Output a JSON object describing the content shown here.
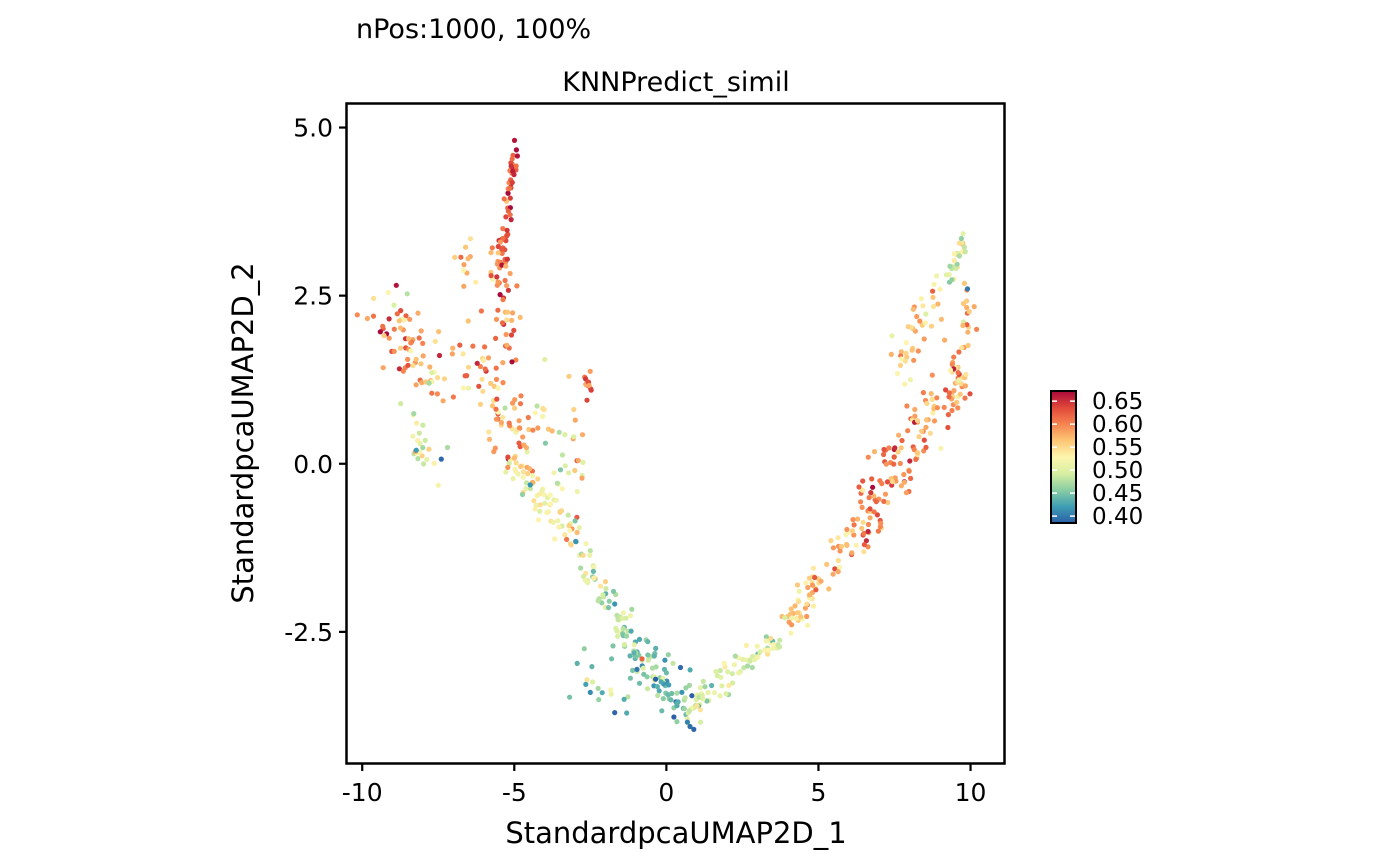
{
  "chart_data": {
    "type": "scatter",
    "title": "nPos:1000, 100%",
    "subtitle": "KNNPredict_simil",
    "xlabel": "StandardpcaUMAP2D_1",
    "ylabel": "StandardpcaUMAP2D_2",
    "xlim": [
      -10.5,
      11.1
    ],
    "ylim": [
      -4.45,
      5.35
    ],
    "x_ticks": [
      -10,
      -5,
      0,
      5,
      10
    ],
    "x_tick_labels": [
      "-10",
      "-5",
      "0",
      "5",
      "10"
    ],
    "y_ticks": [
      5.0,
      2.5,
      0.0,
      -2.5
    ],
    "y_tick_labels": [
      "5.0",
      "2.5",
      "0.0",
      "-2.5"
    ],
    "grid": false,
    "n_points": 1000,
    "color_scale": {
      "name": "Spectral",
      "colors": [
        "#2C5FA8",
        "#3E9EB3",
        "#8ACDA3",
        "#D7EFA2",
        "#FDF5AE",
        "#FDC676",
        "#F7834F",
        "#E0483A",
        "#A8093A"
      ],
      "domain": [
        0.385,
        0.672
      ],
      "legend_ticks": [
        0.65,
        0.6,
        0.55,
        0.5,
        0.45,
        0.4
      ],
      "legend_labels": [
        "0.65",
        "0.60",
        "0.55",
        "0.50",
        "0.45",
        "0.40"
      ],
      "legend_position": "right"
    },
    "clusters": [
      {
        "segment": [
          [
            -9.3,
            2.3
          ],
          [
            -7.6,
            1.2
          ]
        ],
        "spread": [
          0.6,
          0.45
        ],
        "count": 70,
        "value": 0.59,
        "value_sd": 0.045
      },
      {
        "segment": [
          [
            -8.4,
            0.6
          ],
          [
            -7.8,
            0.0
          ]
        ],
        "spread": [
          0.4,
          0.25
        ],
        "count": 22,
        "value": 0.51,
        "value_sd": 0.035
      },
      {
        "segment": [
          [
            -5.0,
            4.8
          ],
          [
            -5.3,
            3.3
          ]
        ],
        "spread": [
          0.15,
          0.25
        ],
        "count": 45,
        "value": 0.63,
        "value_sd": 0.03
      },
      {
        "segment": [
          [
            -5.5,
            3.2
          ],
          [
            -5.2,
            1.6
          ]
        ],
        "spread": [
          0.35,
          0.35
        ],
        "count": 50,
        "value": 0.61,
        "value_sd": 0.035
      },
      {
        "segment": [
          [
            -6.5,
            1.6
          ],
          [
            -4.6,
            0.2
          ]
        ],
        "spread": [
          0.7,
          0.45
        ],
        "count": 70,
        "value": 0.58,
        "value_sd": 0.04
      },
      {
        "segment": [
          [
            -5.2,
            0.2
          ],
          [
            -3.0,
            -1.2
          ]
        ],
        "spread": [
          0.35,
          0.25
        ],
        "count": 70,
        "value": 0.53,
        "value_sd": 0.035
      },
      {
        "segment": [
          [
            -2.6,
            1.3
          ],
          [
            -2.6,
            1.0
          ]
        ],
        "spread": [
          0.12,
          0.12
        ],
        "count": 12,
        "value": 0.61,
        "value_sd": 0.025
      },
      {
        "segment": [
          [
            -3.0,
            0.9
          ],
          [
            -2.8,
            -1.0
          ]
        ],
        "spread": [
          0.2,
          0.3
        ],
        "count": 14,
        "value": 0.55,
        "value_sd": 0.04
      },
      {
        "segment": [
          [
            -2.8,
            -1.3
          ],
          [
            -1.3,
            -2.6
          ]
        ],
        "spread": [
          0.2,
          0.2
        ],
        "count": 50,
        "value": 0.495,
        "value_sd": 0.03
      },
      {
        "segment": [
          [
            -1.3,
            -2.6
          ],
          [
            0.6,
            -3.6
          ]
        ],
        "spread": [
          0.55,
          0.3
        ],
        "count": 70,
        "value": 0.46,
        "value_sd": 0.03
      },
      {
        "segment": [
          [
            -3.1,
            -3.1
          ],
          [
            -1.2,
            -3.6
          ]
        ],
        "spread": [
          0.45,
          0.25
        ],
        "count": 14,
        "value": 0.465,
        "value_sd": 0.035
      },
      {
        "segment": [
          [
            0.6,
            -3.7
          ],
          [
            3.6,
            -2.6
          ]
        ],
        "spread": [
          0.3,
          0.18
        ],
        "count": 80,
        "value": 0.5,
        "value_sd": 0.025
      },
      {
        "segment": [
          [
            3.6,
            -2.6
          ],
          [
            6.3,
            -1.0
          ]
        ],
        "spread": [
          0.3,
          0.25
        ],
        "count": 70,
        "value": 0.56,
        "value_sd": 0.03
      },
      {
        "segment": [
          [
            6.3,
            -1.0
          ],
          [
            8.4,
            0.5
          ]
        ],
        "spread": [
          0.55,
          0.5
        ],
        "count": 100,
        "value": 0.6,
        "value_sd": 0.035
      },
      {
        "segment": [
          [
            8.2,
            0.6
          ],
          [
            9.9,
            1.2
          ]
        ],
        "spread": [
          0.35,
          0.35
        ],
        "count": 45,
        "value": 0.58,
        "value_sd": 0.035
      },
      {
        "segment": [
          [
            7.5,
            1.5
          ],
          [
            8.9,
            2.6
          ]
        ],
        "spread": [
          0.35,
          0.3
        ],
        "count": 40,
        "value": 0.56,
        "value_sd": 0.035
      },
      {
        "segment": [
          [
            9.3,
            2.8
          ],
          [
            9.8,
            3.3
          ]
        ],
        "spread": [
          0.2,
          0.15
        ],
        "count": 25,
        "value": 0.51,
        "value_sd": 0.035
      },
      {
        "segment": [
          [
            9.4,
            1.1
          ],
          [
            9.9,
            2.5
          ]
        ],
        "spread": [
          0.25,
          0.3
        ],
        "count": 30,
        "value": 0.57,
        "value_sd": 0.035
      },
      {
        "segment": [
          [
            -1.0,
            -2.8
          ],
          [
            0.6,
            -3.8
          ]
        ],
        "spread": [
          0.4,
          0.3
        ],
        "count": 20,
        "value": 0.43,
        "value_sd": 0.025
      },
      {
        "segment": [
          [
            -4.2,
            1.0
          ],
          [
            -3.2,
            -0.4
          ]
        ],
        "spread": [
          0.3,
          0.3
        ],
        "count": 18,
        "value": 0.515,
        "value_sd": 0.035
      },
      {
        "segment": [
          [
            -6.8,
            3.1
          ],
          [
            -6.0,
            2.1
          ]
        ],
        "spread": [
          0.35,
          0.3
        ],
        "count": 12,
        "value": 0.58,
        "value_sd": 0.03
      }
    ],
    "outliers": [
      {
        "x": -7.4,
        "y": 0.07,
        "value": 0.39
      },
      {
        "x": -6.6,
        "y": 3.22,
        "value": 0.565
      },
      {
        "x": -4.0,
        "y": 1.55,
        "value": 0.5
      },
      {
        "x": -3.2,
        "y": 1.3,
        "value": 0.56
      },
      {
        "x": -2.9,
        "y": 0.05,
        "value": 0.58
      },
      {
        "x": -2.4,
        "y": -1.6,
        "value": 0.44
      },
      {
        "x": -3.0,
        "y": -0.85,
        "value": 0.45
      },
      {
        "x": -1.8,
        "y": -2.9,
        "value": 0.445
      },
      {
        "x": -2.7,
        "y": -2.75,
        "value": 0.46
      },
      {
        "x": -2.5,
        "y": -3.4,
        "value": 0.41
      },
      {
        "x": -1.7,
        "y": -3.7,
        "value": 0.39
      },
      {
        "x": 0.9,
        "y": -3.95,
        "value": 0.39
      },
      {
        "x": -0.8,
        "y": -2.9,
        "value": 0.62
      },
      {
        "x": 9.7,
        "y": 3.35,
        "value": 0.46
      },
      {
        "x": 9.9,
        "y": 2.6,
        "value": 0.4
      },
      {
        "x": 10.2,
        "y": 2.0,
        "value": 0.6
      },
      {
        "x": -7.8,
        "y": 1.2,
        "value": 0.47
      },
      {
        "x": -7.5,
        "y": -0.32,
        "value": 0.52
      }
    ]
  }
}
